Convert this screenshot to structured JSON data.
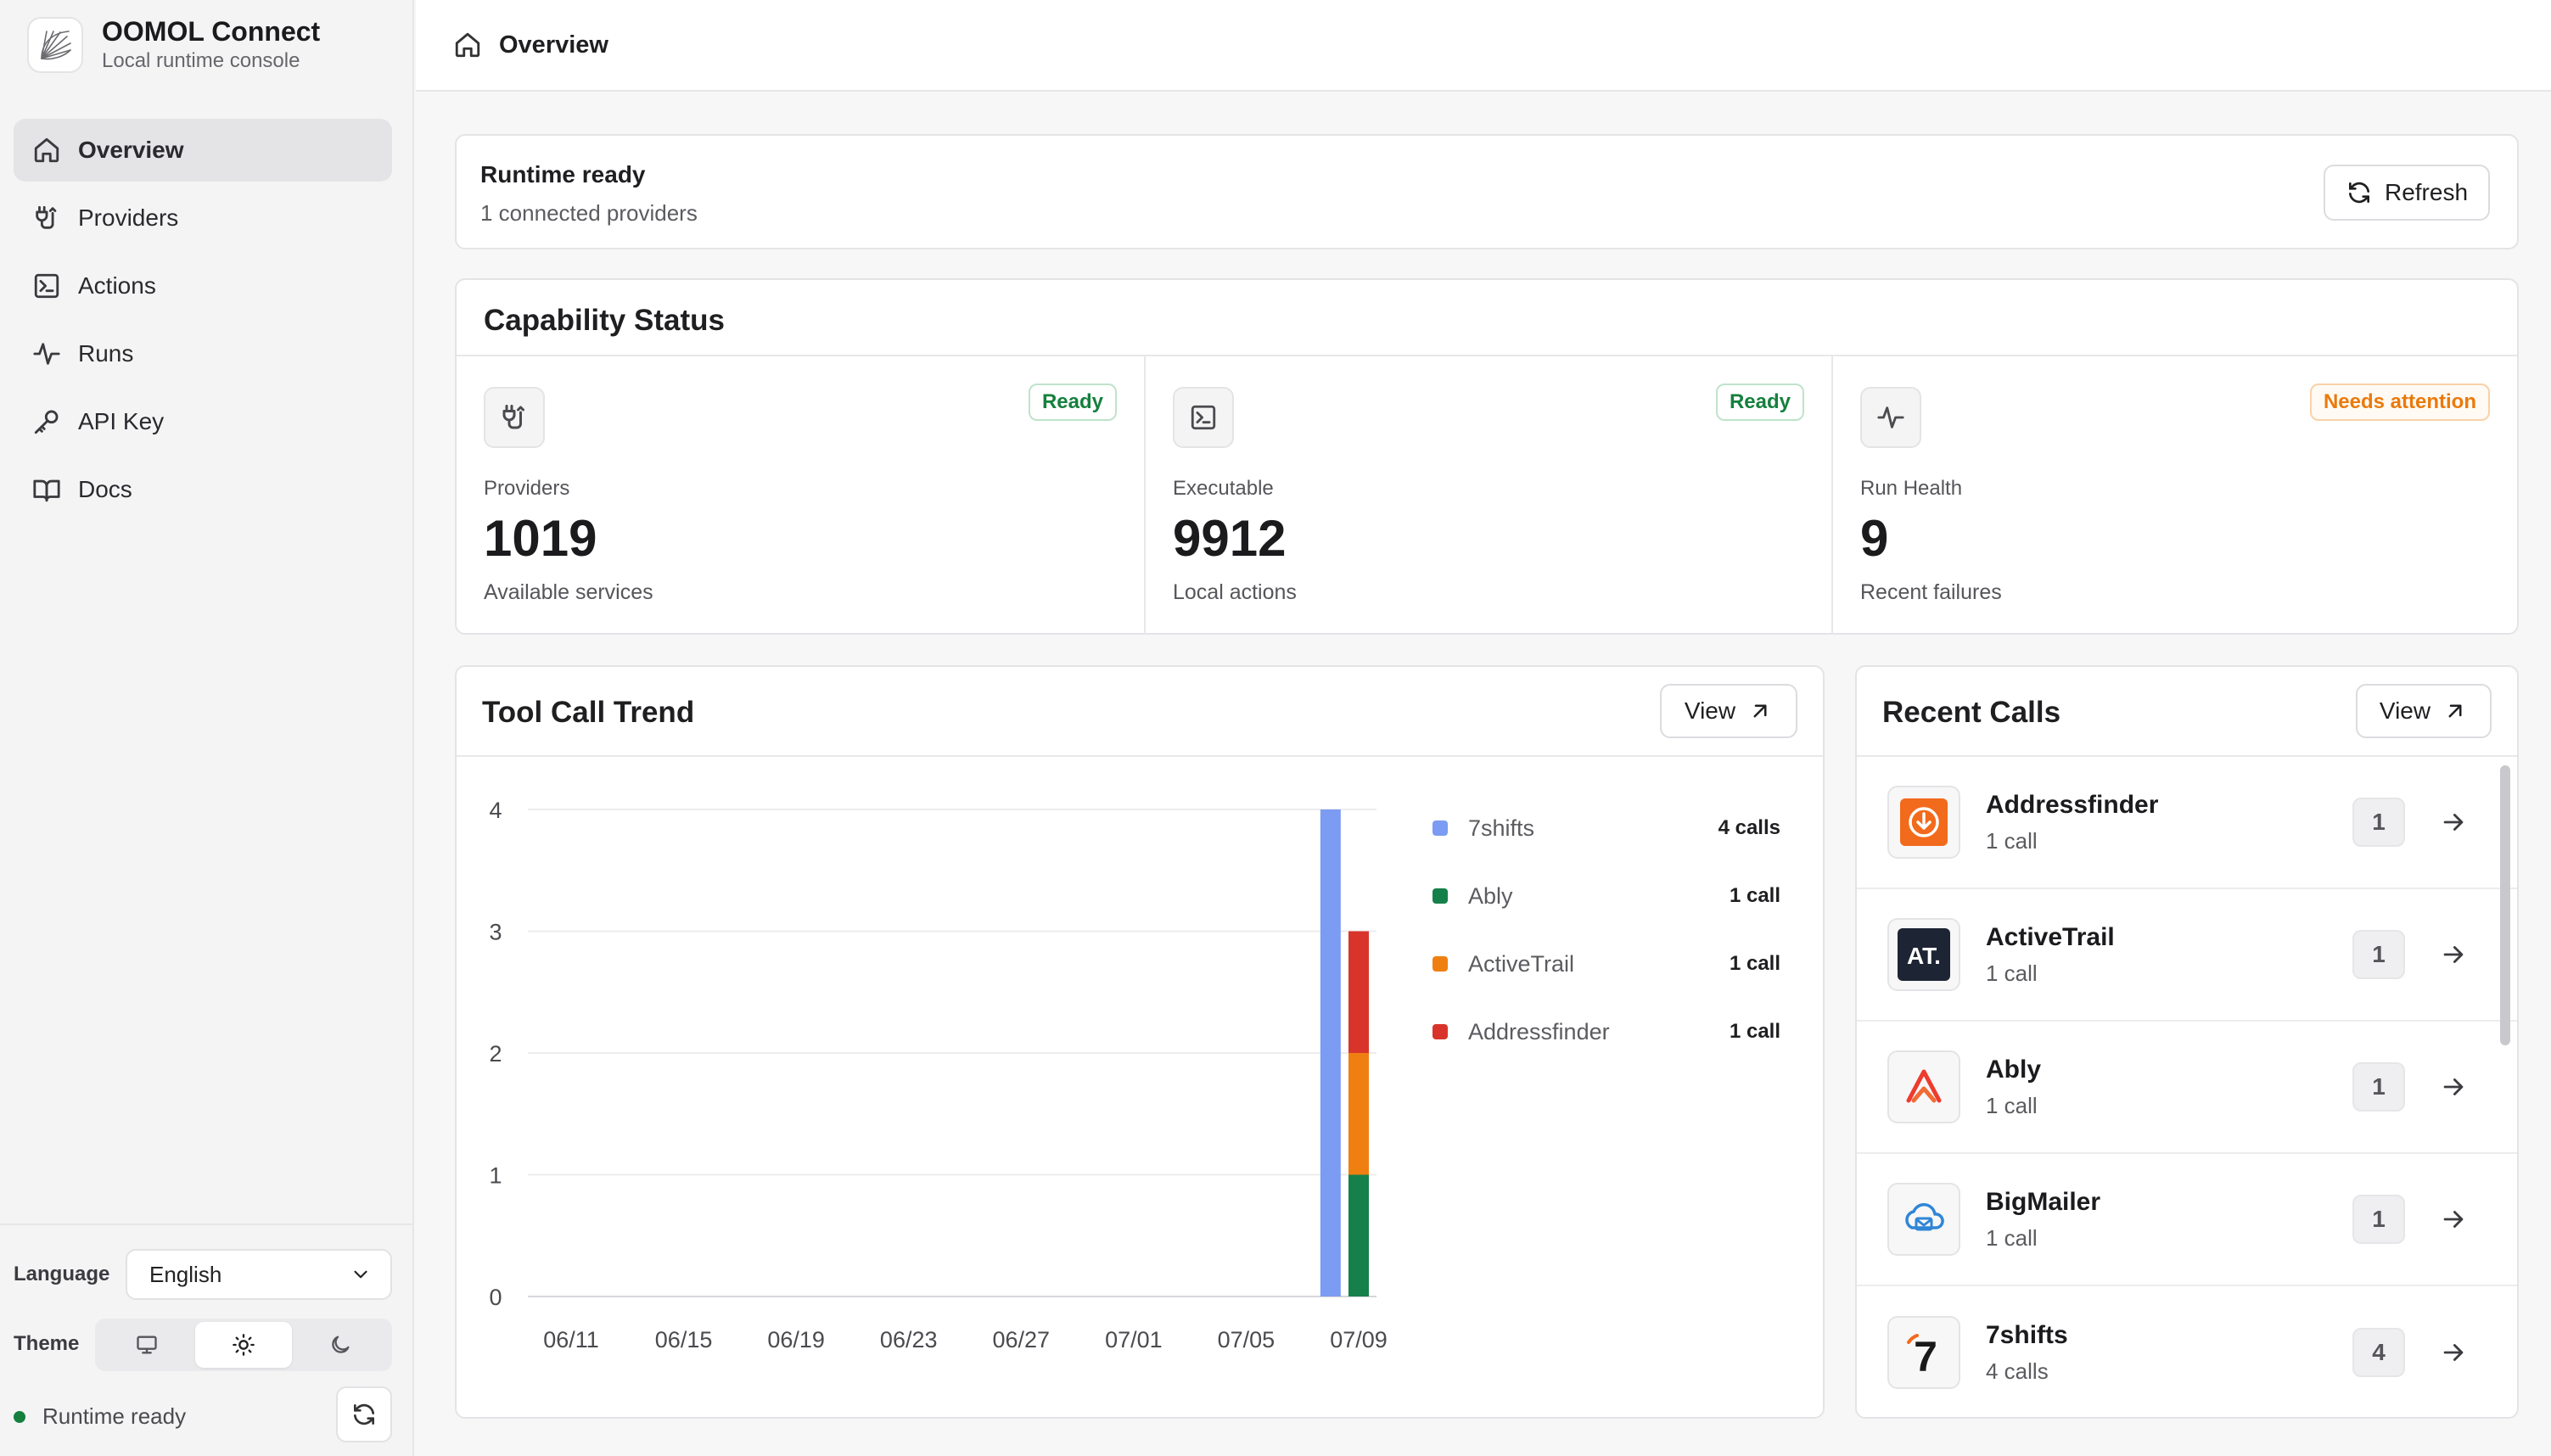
{
  "app": {
    "title": "OOMOL Connect",
    "subtitle": "Local runtime console"
  },
  "sidebar": {
    "items": [
      {
        "label": "Overview",
        "icon": "home-icon",
        "active": true
      },
      {
        "label": "Providers",
        "icon": "plug-icon",
        "active": false
      },
      {
        "label": "Actions",
        "icon": "terminal-icon",
        "active": false
      },
      {
        "label": "Runs",
        "icon": "activity-icon",
        "active": false
      },
      {
        "label": "API Key",
        "icon": "key-icon",
        "active": false
      },
      {
        "label": "Docs",
        "icon": "book-icon",
        "active": false
      }
    ],
    "language_label": "Language",
    "language_value": "English",
    "theme_label": "Theme",
    "theme_options": [
      "system",
      "light",
      "dark"
    ],
    "theme_selected": "light",
    "runtime_status": "Runtime ready"
  },
  "header": {
    "breadcrumb": "Overview"
  },
  "runtime": {
    "title": "Runtime ready",
    "subtitle": "1 connected providers",
    "refresh_label": "Refresh"
  },
  "capability": {
    "title": "Capability Status",
    "cards": [
      {
        "label": "Providers",
        "value": "1019",
        "desc": "Available services",
        "badge": "Ready",
        "badge_type": "ok"
      },
      {
        "label": "Executable",
        "value": "9912",
        "desc": "Local actions",
        "badge": "Ready",
        "badge_type": "ok"
      },
      {
        "label": "Run Health",
        "value": "9",
        "desc": "Recent failures",
        "badge": "Needs attention",
        "badge_type": "warn"
      }
    ]
  },
  "trend": {
    "title": "Tool Call Trend",
    "view_label": "View",
    "legend": [
      {
        "name": "7shifts",
        "count": "4 calls",
        "color": "#7b9cf2"
      },
      {
        "name": "Ably",
        "count": "1 call",
        "color": "#16804a"
      },
      {
        "name": "ActiveTrail",
        "count": "1 call",
        "color": "#f07f12"
      },
      {
        "name": "Addressfinder",
        "count": "1 call",
        "color": "#d9342b"
      }
    ]
  },
  "chart_data": {
    "type": "bar",
    "stacked": true,
    "y_ticks": [
      0,
      1,
      2,
      3,
      4
    ],
    "ylim": [
      0,
      4
    ],
    "x_ticks": [
      "06/11",
      "06/15",
      "06/19",
      "06/23",
      "06/27",
      "07/01",
      "07/05",
      "07/09"
    ],
    "x_range": [
      "06/11",
      "07/09"
    ],
    "categories": [
      "07/08",
      "07/09"
    ],
    "series": [
      {
        "name": "7shifts",
        "values": [
          4,
          0
        ],
        "color": "#7b9cf2"
      },
      {
        "name": "Ably",
        "values": [
          0,
          1
        ],
        "color": "#16804a"
      },
      {
        "name": "ActiveTrail",
        "values": [
          0,
          1
        ],
        "color": "#f07f12"
      },
      {
        "name": "Addressfinder",
        "values": [
          0,
          1
        ],
        "color": "#d9342b"
      }
    ],
    "grid": true,
    "legend_position": "right"
  },
  "recent": {
    "title": "Recent Calls",
    "view_label": "View",
    "calls": [
      {
        "name": "Addressfinder",
        "sub": "1 call",
        "count": "1",
        "icon": "addressfinder-logo-icon"
      },
      {
        "name": "ActiveTrail",
        "sub": "1 call",
        "count": "1",
        "icon": "activetrail-logo-icon",
        "logo_text": "AT."
      },
      {
        "name": "Ably",
        "sub": "1 call",
        "count": "1",
        "icon": "ably-logo-icon"
      },
      {
        "name": "BigMailer",
        "sub": "1 call",
        "count": "1",
        "icon": "bigmailer-logo-icon"
      },
      {
        "name": "7shifts",
        "sub": "4 calls",
        "count": "4",
        "icon": "7shifts-logo-icon",
        "logo_text": "7"
      }
    ]
  }
}
